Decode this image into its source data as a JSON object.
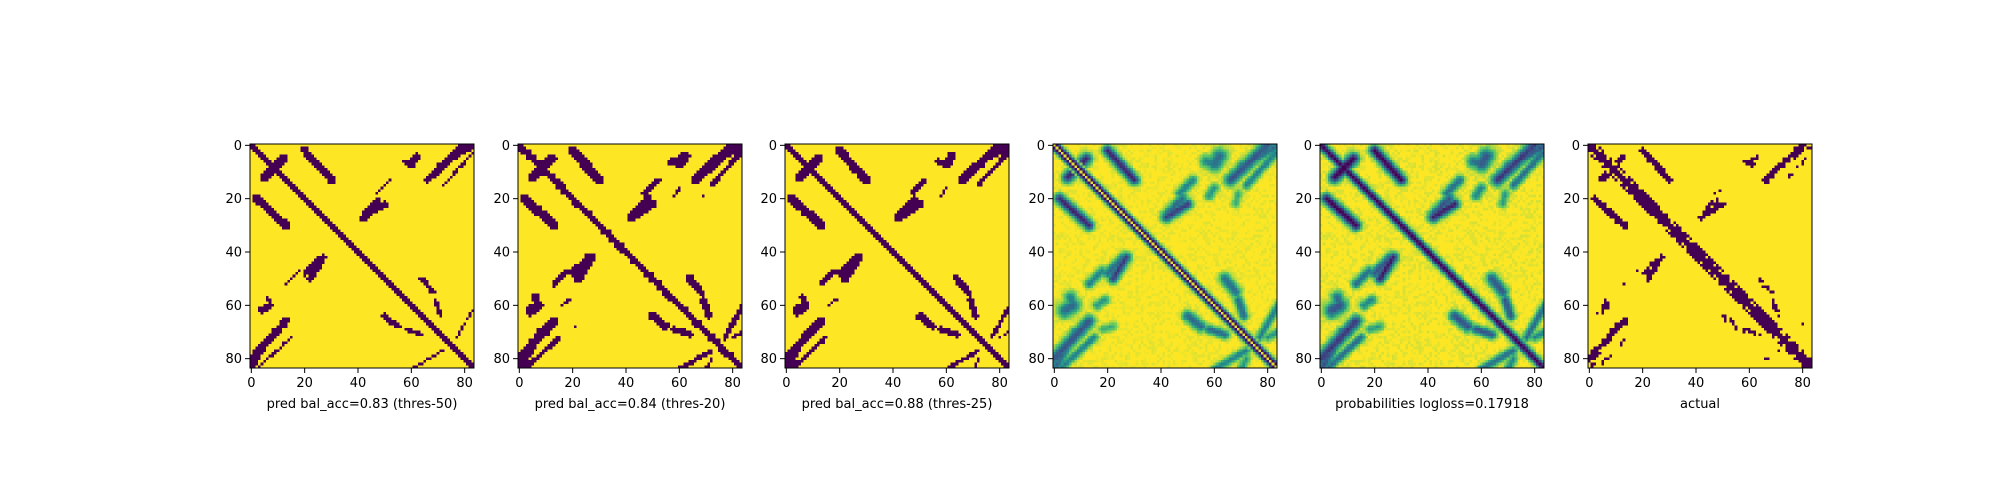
{
  "chart_data": [
    {
      "type": "heatmap",
      "colormap": "viridis",
      "binary": true,
      "pattern": "thres50",
      "xlabel": "pred bal_acc=0.83 (thres-50)",
      "xlim": [
        0,
        84
      ],
      "ylim": [
        84,
        0
      ],
      "xticks": [
        0,
        20,
        40,
        60,
        80
      ],
      "yticks": [
        0,
        20,
        40,
        60,
        80
      ]
    },
    {
      "type": "heatmap",
      "colormap": "viridis",
      "binary": true,
      "pattern": "thres20",
      "xlabel": "pred bal_acc=0.84 (thres-20)",
      "xlim": [
        0,
        84
      ],
      "ylim": [
        84,
        0
      ],
      "xticks": [
        0,
        20,
        40,
        60,
        80
      ],
      "yticks": [
        0,
        20,
        40,
        60,
        80
      ]
    },
    {
      "type": "heatmap",
      "colormap": "viridis",
      "binary": true,
      "pattern": "thres25",
      "xlabel": "pred bal_acc=0.88 (thres-25)",
      "xlim": [
        0,
        84
      ],
      "ylim": [
        84,
        0
      ],
      "xticks": [
        0,
        20,
        40,
        60,
        80
      ],
      "yticks": [
        0,
        20,
        40,
        60,
        80
      ]
    },
    {
      "type": "heatmap",
      "colormap": "viridis",
      "binary": false,
      "pattern": "difference",
      "xlabel": "",
      "xlim": [
        0,
        84
      ],
      "ylim": [
        84,
        0
      ],
      "xticks": [
        0,
        20,
        40,
        60,
        80
      ],
      "yticks": [
        0,
        20,
        40,
        60,
        80
      ]
    },
    {
      "type": "heatmap",
      "colormap": "viridis",
      "binary": false,
      "pattern": "probabilities",
      "xlabel": "probabilities logloss=0.17918",
      "xlim": [
        0,
        84
      ],
      "ylim": [
        84,
        0
      ],
      "xticks": [
        0,
        20,
        40,
        60,
        80
      ],
      "yticks": [
        0,
        20,
        40,
        60,
        80
      ]
    },
    {
      "type": "heatmap",
      "colormap": "viridis",
      "binary": true,
      "pattern": "actual",
      "xlabel": "actual",
      "xlim": [
        0,
        84
      ],
      "ylim": [
        84,
        0
      ],
      "xticks": [
        0,
        20,
        40,
        60,
        80
      ],
      "yticks": [
        0,
        20,
        40,
        60,
        80
      ]
    }
  ],
  "colors": {
    "low": "#440154",
    "mid": "#21918c",
    "high": "#fde725"
  }
}
